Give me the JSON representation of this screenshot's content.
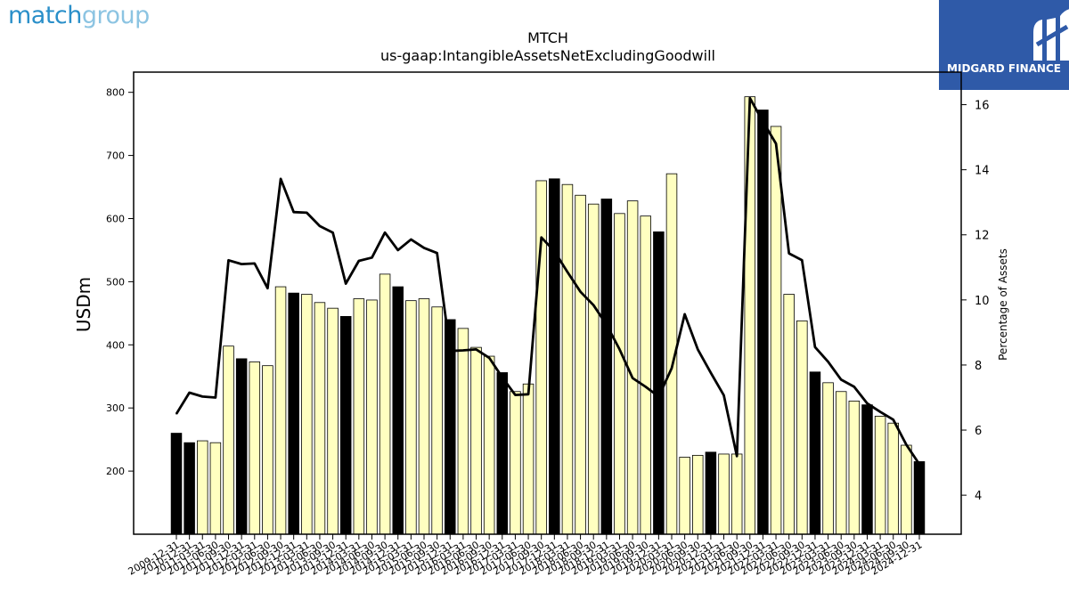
{
  "logos": {
    "left_word1": "match",
    "left_word2": "group",
    "right_brand": "MIDGARD FINANCE"
  },
  "colors": {
    "highlight_bar": "#000000",
    "regular_bar": "#ffffc0",
    "line": "#000000",
    "logo_bg": "#2f5aa8"
  },
  "chart_data": {
    "type": "bar",
    "title": "MTCH",
    "subtitle": "us-gaap:IntangibleAssetsNetExcludingGoodwill",
    "ylabel": "USDm",
    "y2label": "Percentage of Assets",
    "ylim": [
      100,
      832
    ],
    "y2lim": [
      2.8,
      17.0
    ],
    "yticks": [
      200,
      300,
      400,
      500,
      600,
      700,
      800
    ],
    "y2ticks": [
      4,
      6,
      8,
      10,
      12,
      14,
      16
    ],
    "categories": [
      "2009-12-31",
      "2010-12-31",
      "2011-03-31",
      "2011-06-30",
      "2011-09-30",
      "2011-12-31",
      "2012-03-31",
      "2012-06-30",
      "2012-09-30",
      "2012-12-31",
      "2013-03-31",
      "2013-06-30",
      "2013-09-30",
      "2013-12-31",
      "2014-03-31",
      "2014-06-30",
      "2014-09-30",
      "2014-12-31",
      "2015-03-31",
      "2015-06-30",
      "2015-09-30",
      "2015-12-31",
      "2016-03-31",
      "2016-06-30",
      "2016-09-30",
      "2016-12-31",
      "2017-03-31",
      "2017-06-30",
      "2017-09-30",
      "2017-12-31",
      "2018-03-31",
      "2018-06-30",
      "2018-09-30",
      "2018-12-31",
      "2019-03-31",
      "2019-06-30",
      "2019-09-30",
      "2019-12-31",
      "2020-03-31",
      "2020-06-30",
      "2020-09-30",
      "2020-12-31",
      "2021-03-31",
      "2021-06-30",
      "2021-09-30",
      "2021-12-31",
      "2022-03-31",
      "2022-06-30",
      "2022-09-30",
      "2022-12-31",
      "2023-03-31",
      "2023-06-30",
      "2023-09-30",
      "2023-12-31",
      "2024-03-31",
      "2024-06-30",
      "2024-09-30",
      "2024-12-31"
    ],
    "series": [
      {
        "name": "",
        "kind": "bar",
        "values": [
          260,
          245,
          248,
          245,
          398,
          378,
          373,
          367,
          492,
          482,
          480,
          467,
          458,
          445,
          473,
          471,
          512,
          492,
          470,
          473,
          460,
          440,
          426,
          396,
          382,
          356,
          326,
          338,
          660,
          663,
          654,
          637,
          623,
          631,
          608,
          628,
          604,
          579,
          671,
          222,
          225,
          230,
          227,
          227,
          793,
          772,
          746,
          480,
          438,
          357,
          340,
          326,
          311,
          305,
          287,
          276,
          241,
          215
        ],
        "highlighted": [
          true,
          true,
          false,
          false,
          false,
          true,
          false,
          false,
          false,
          true,
          false,
          false,
          false,
          true,
          false,
          false,
          false,
          true,
          false,
          false,
          false,
          true,
          false,
          false,
          false,
          true,
          false,
          false,
          false,
          true,
          false,
          false,
          false,
          true,
          false,
          false,
          false,
          true,
          false,
          false,
          false,
          true,
          false,
          false,
          false,
          true,
          false,
          false,
          false,
          true,
          false,
          false,
          false,
          true,
          false,
          false,
          false,
          true
        ]
      },
      {
        "name": "",
        "kind": "line",
        "axis": "right",
        "values": [
          6.5,
          7.15,
          7.03,
          7.0,
          11.22,
          11.1,
          11.12,
          10.36,
          13.72,
          12.7,
          12.68,
          12.27,
          12.07,
          10.5,
          11.2,
          11.3,
          12.07,
          11.53,
          11.86,
          11.6,
          11.44,
          8.43,
          8.45,
          8.48,
          8.22,
          7.62,
          7.08,
          7.1,
          11.92,
          11.5,
          10.86,
          10.25,
          9.84,
          9.24,
          8.48,
          7.6,
          7.33,
          7.03,
          7.9,
          9.56,
          8.48,
          7.76,
          7.07,
          5.2,
          16.2,
          15.48,
          14.8,
          11.43,
          11.22,
          8.55,
          8.1,
          7.55,
          7.33,
          6.82,
          6.56,
          6.32,
          5.55,
          4.95
        ]
      }
    ]
  }
}
